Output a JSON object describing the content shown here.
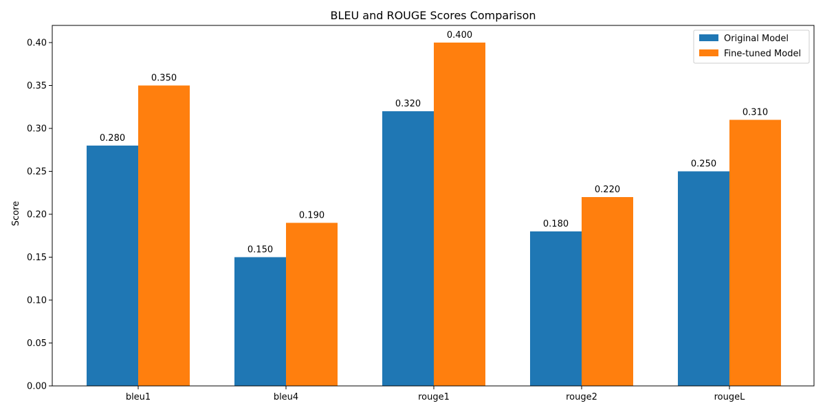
{
  "chart_data": {
    "type": "bar",
    "title": "BLEU and ROUGE Scores Comparison",
    "xlabel": "",
    "ylabel": "Score",
    "categories": [
      "bleu1",
      "bleu4",
      "rouge1",
      "rouge2",
      "rougeL"
    ],
    "series": [
      {
        "name": "Original Model",
        "values": [
          0.28,
          0.15,
          0.32,
          0.18,
          0.25
        ],
        "color": "#1f77b4",
        "labels": [
          "0.280",
          "0.150",
          "0.320",
          "0.180",
          "0.250"
        ]
      },
      {
        "name": "Fine-tuned Model",
        "values": [
          0.35,
          0.19,
          0.4,
          0.22,
          0.31
        ],
        "color": "#ff7f0e",
        "labels": [
          "0.350",
          "0.190",
          "0.400",
          "0.220",
          "0.310"
        ]
      }
    ],
    "ylim": [
      0,
      0.42
    ],
    "yticks": [
      "0.00",
      "0.05",
      "0.10",
      "0.15",
      "0.20",
      "0.25",
      "0.30",
      "0.35",
      "0.40"
    ],
    "grid": false,
    "legend_position": "top-right"
  }
}
